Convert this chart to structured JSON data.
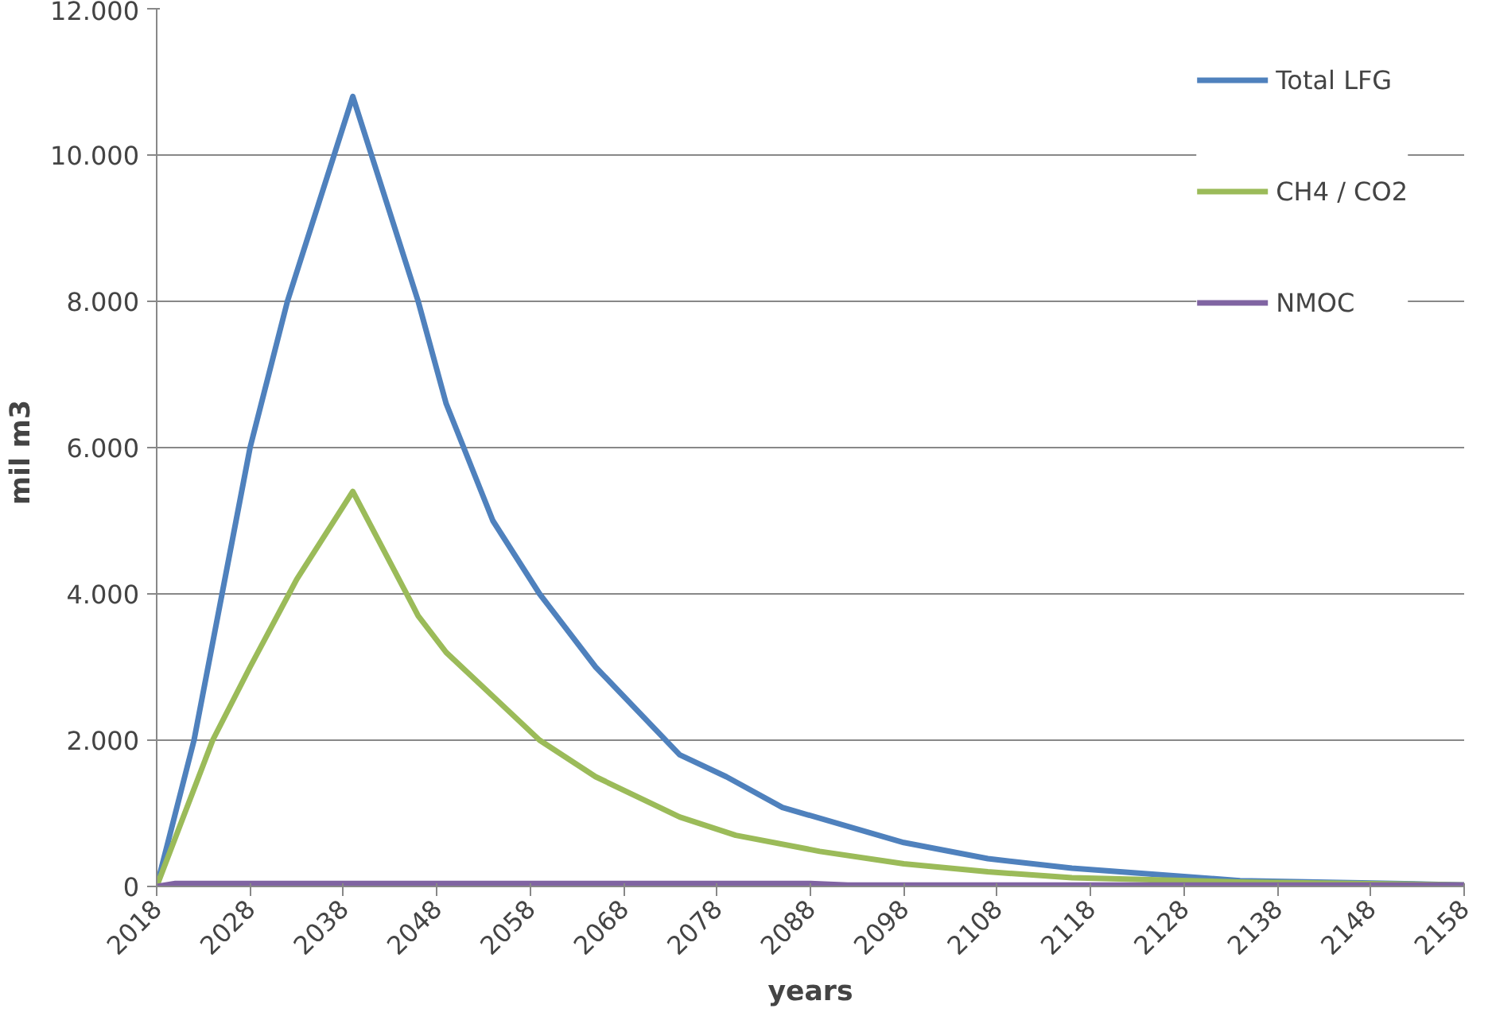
{
  "chart_data": {
    "type": "line",
    "xlabel": "years",
    "ylabel": "mil  m3",
    "xlim": [
      2018,
      2158
    ],
    "xticks": [
      2018,
      2028,
      2038,
      2048,
      2058,
      2068,
      2078,
      2088,
      2098,
      2108,
      2118,
      2128,
      2138,
      2148,
      2158
    ],
    "ylim": [
      0,
      12000
    ],
    "yticks": [
      0,
      {
        "value": 2000,
        "label": "2.000"
      },
      {
        "value": 4000,
        "label": "4.000"
      },
      {
        "value": 6000,
        "label": "6.000"
      },
      {
        "value": 8000,
        "label": "8.000"
      },
      {
        "value": 10000,
        "label": "10.000"
      },
      {
        "value": 12000,
        "label": "12.000"
      }
    ],
    "grid": "y",
    "legend": "top right",
    "marker": "none",
    "line_style": "solid",
    "series": [
      {
        "name": "Total LFG",
        "color": "#4f81bd",
        "x": [
          2018,
          2022,
          2025,
          2028,
          2032,
          2039,
          2046,
          2049,
          2054,
          2059,
          2065,
          2074,
          2079,
          2085,
          2098,
          2107,
          2116,
          2134,
          2147,
          2158
        ],
        "values": [
          0,
          2000,
          4000,
          6000,
          8000,
          10800,
          8000,
          6600,
          5000,
          4000,
          3000,
          1800,
          1500,
          1080,
          600,
          380,
          250,
          80,
          50,
          20
        ]
      },
      {
        "name": "CH4 / CO2",
        "color": "#9bbb59",
        "x": [
          2018,
          2024,
          2028,
          2033,
          2039,
          2046,
          2049,
          2054,
          2059,
          2065,
          2074,
          2080,
          2089,
          2098,
          2107,
          2116,
          2134,
          2158
        ],
        "values": [
          0,
          2000,
          3000,
          4200,
          5400,
          3700,
          3200,
          2600,
          2000,
          1500,
          950,
          700,
          480,
          310,
          200,
          120,
          60,
          20
        ]
      },
      {
        "name": "NMOC",
        "color": "#8064a2",
        "x": [
          2018,
          2020,
          2088,
          2092,
          2158
        ],
        "values": [
          0,
          40,
          40,
          20,
          20
        ]
      }
    ]
  }
}
